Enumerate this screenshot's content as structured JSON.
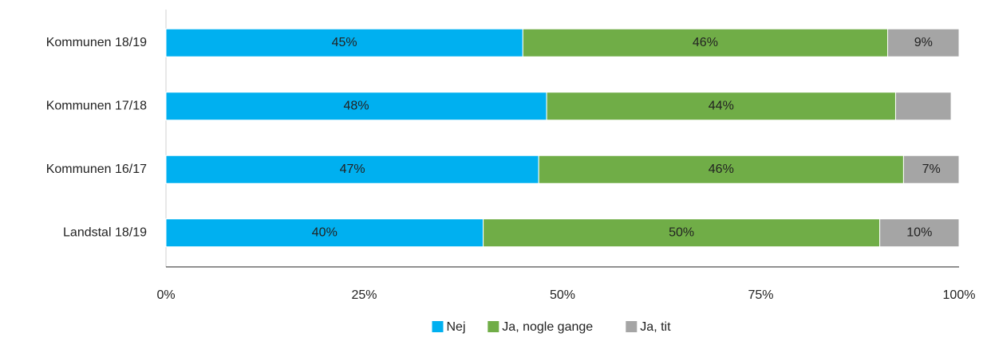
{
  "chart_data": {
    "type": "bar",
    "orientation": "horizontal",
    "stacked": true,
    "categories": [
      "Kommunen 18/19",
      "Kommunen 17/18",
      "Kommunen 16/17",
      "Landstal 18/19"
    ],
    "series": [
      {
        "name": "Nej",
        "color": "#00b0f0",
        "values": [
          45,
          48,
          47,
          40
        ],
        "value_labels": [
          "45%",
          "48%",
          "47%",
          "40%"
        ]
      },
      {
        "name": "Ja, nogle gange",
        "color": "#70ad47",
        "values": [
          46,
          44,
          46,
          50
        ],
        "value_labels": [
          "46%",
          "44%",
          "46%",
          "50%"
        ]
      },
      {
        "name": "Ja, tit",
        "color": "#a5a5a5",
        "values": [
          9,
          7,
          7,
          10
        ],
        "value_labels": [
          "9%",
          null,
          "7%",
          "10%"
        ]
      }
    ],
    "xlim": [
      0,
      100
    ],
    "xticks": [
      {
        "value": 0,
        "label": "0%"
      },
      {
        "value": 25,
        "label": "25%"
      },
      {
        "value": 50,
        "label": "50%"
      },
      {
        "value": 75,
        "label": "75%"
      },
      {
        "value": 100,
        "label": "100%"
      }
    ],
    "grid": false,
    "legend": "bottom"
  }
}
